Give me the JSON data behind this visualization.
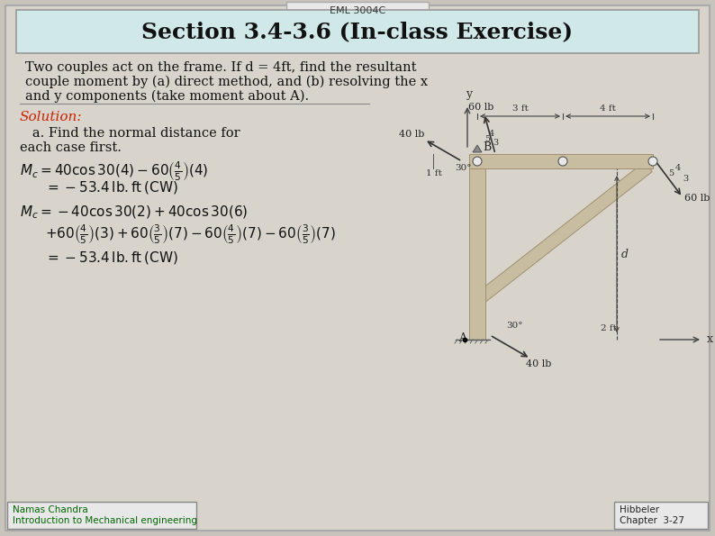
{
  "bg_color": "#c8c4bc",
  "slide_bg": "#d8d4cc",
  "title_tab_text": "EML 3004C",
  "title_text": "Section 3.4-3.6 (In-class Exercise)",
  "problem_line1": "Two couples act on the frame. If d = 4ft, find the resultant",
  "problem_line2": "couple moment by (a) direct method, and (b) resolving the x",
  "problem_line3": "and y components (take moment about A).",
  "solution_label": "Solution:",
  "solution_color": "#cc2200",
  "part_a_text": "   a. Find the normal distance for\neach case first.",
  "footer_left1": "Namas Chandra",
  "footer_left2": "Introduction to Mechanical engineering",
  "footer_right1": "Hibbeler",
  "footer_right2": "Chapter  3-27",
  "title_box_color": "#d0e8e8",
  "frame_color": "#c8bda0",
  "frame_border": "#a09070"
}
